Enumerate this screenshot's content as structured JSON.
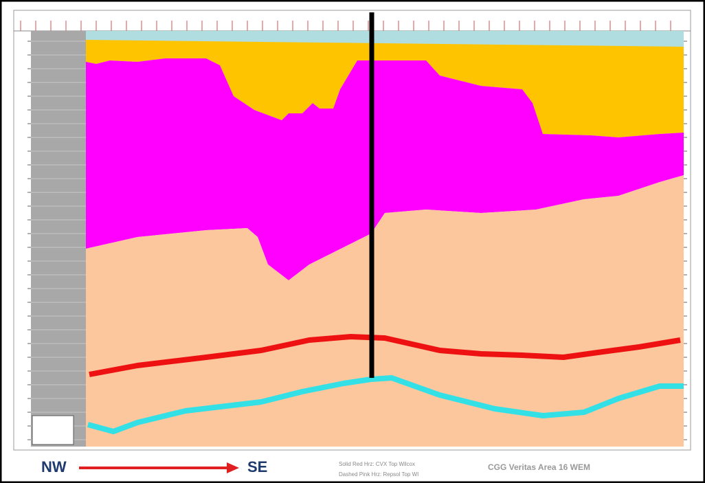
{
  "direction": {
    "start": "NW",
    "end": "SE"
  },
  "legend": [
    "Solid Red Hrz: CVX Top Wilcox",
    "Dashed Pink Hrz: Repsol Top WI"
  ],
  "credit": "CGG Veritas Area 16 WEM"
}
